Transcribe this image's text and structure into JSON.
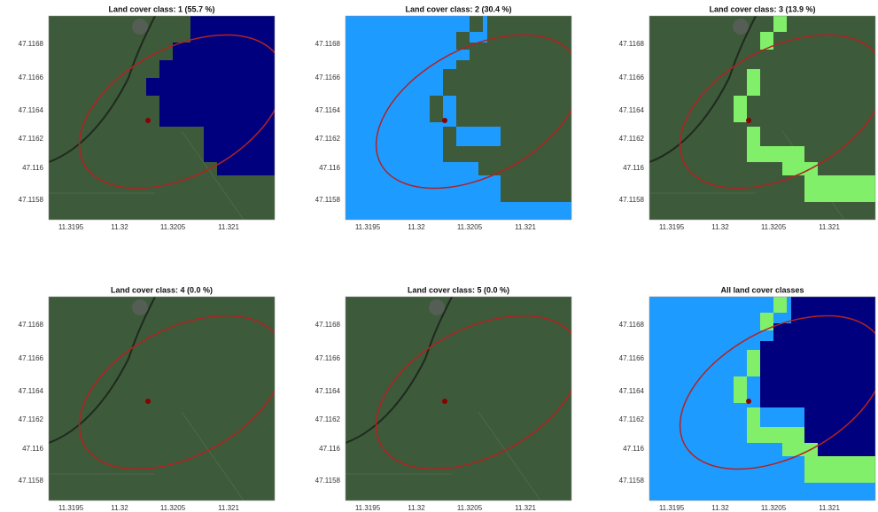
{
  "panels": [
    {
      "title": "Land cover class: 1 (55.7 %)"
    },
    {
      "title": "Land cover class: 2 (30.4 %)"
    },
    {
      "title": "Land cover class: 3 (13.9 %)"
    },
    {
      "title": "Land cover class: 4 (0.0 %)"
    },
    {
      "title": "Land cover class: 5 (0.0 %)"
    },
    {
      "title": "All land cover classes"
    }
  ],
  "x_tick_labels": [
    "11.3195",
    "11.32",
    "11.3205",
    "11.321"
  ],
  "y_tick_labels": [
    "47.1168",
    "47.1166",
    "47.1164",
    "47.1162",
    "47.116",
    "47.1158"
  ]
}
